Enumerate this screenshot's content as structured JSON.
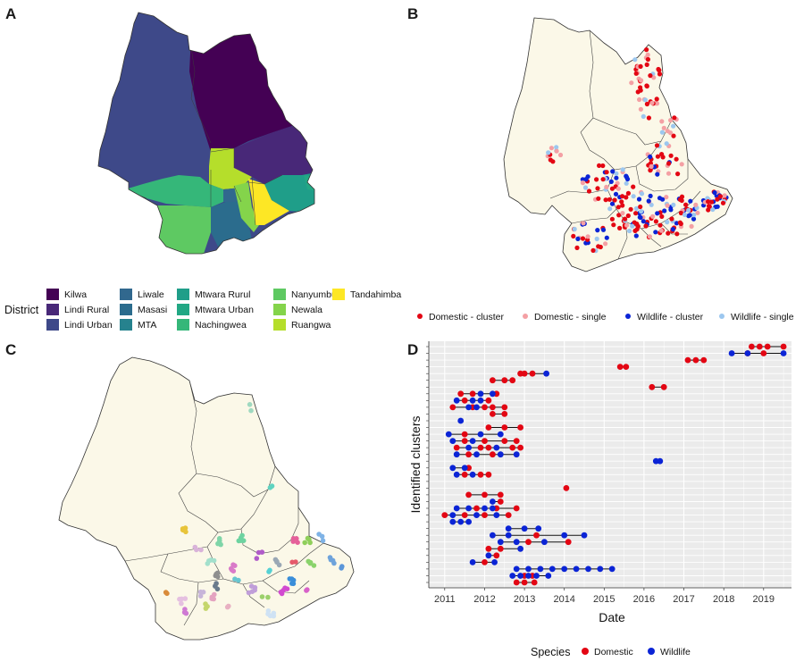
{
  "panels": {
    "a": "A",
    "b": "B",
    "c": "C",
    "d": "D"
  },
  "colors": {
    "land": "#fbf8e8",
    "domestic": "#e30613",
    "domestic_single": "#f4a0a4",
    "wildlife": "#0b24d6",
    "wildlife_single": "#9cc7ef",
    "panel_bg": "#ebebeb"
  },
  "legend_a": {
    "title": "District",
    "items": [
      {
        "label": "Kilwa",
        "color": "#440154"
      },
      {
        "label": "Lindi Rural",
        "color": "#482878"
      },
      {
        "label": "Lindi Urban",
        "color": "#3e4989"
      },
      {
        "label": "Liwale",
        "color": "#31688e"
      },
      {
        "label": "Masasi",
        "color": "#2b6c8d"
      },
      {
        "label": "MTA",
        "color": "#26828e"
      },
      {
        "label": "Mtwara Rurul",
        "color": "#1f9e89"
      },
      {
        "label": "Mtwara Urban",
        "color": "#22a884"
      },
      {
        "label": "Nachingwea",
        "color": "#35b779"
      },
      {
        "label": "Nanyumbu",
        "color": "#5ec962"
      },
      {
        "label": "Newala",
        "color": "#84d44b"
      },
      {
        "label": "Ruangwa",
        "color": "#b5de2b"
      },
      {
        "label": "Tandahimba",
        "color": "#fde725"
      }
    ]
  },
  "legend_b": {
    "items": [
      {
        "label": "Domestic - cluster",
        "color": "#e30613"
      },
      {
        "label": "Domestic - single",
        "color": "#f4a0a4"
      },
      {
        "label": "Wildlife - cluster",
        "color": "#0b24d6"
      },
      {
        "label": "Wildlife - single",
        "color": "#9cc7ef"
      }
    ]
  },
  "chart_data": {
    "type": "scatter",
    "xlabel": "Date",
    "ylabel": "Identified clusters",
    "xlim": [
      2010.6,
      2019.7
    ],
    "x_ticks": [
      "2011",
      "2012",
      "2013",
      "2014",
      "2015",
      "2016",
      "2017",
      "2018",
      "2019"
    ],
    "legend": {
      "title": "Species",
      "placement": "bottom",
      "items": [
        {
          "label": "Domestic",
          "color": "#e30613"
        },
        {
          "label": "Wildlife",
          "color": "#0b24d6"
        }
      ]
    },
    "clusters": [
      {
        "domestic": [
          2018.7,
          2018.9,
          2019.1,
          2019.5
        ],
        "wildlife": []
      },
      {
        "domestic": [
          2018.6,
          2019.0
        ],
        "wildlife": [
          2018.2,
          2018.6,
          2019.5
        ]
      },
      {
        "domestic": [
          2017.1,
          2017.3,
          2017.5
        ],
        "wildlife": []
      },
      {
        "domestic": [
          2015.4,
          2015.55
        ],
        "wildlife": []
      },
      {
        "domestic": [
          2012.9,
          2013.0,
          2013.2
        ],
        "wildlife": [
          2013.55
        ]
      },
      {
        "domestic": [
          2012.2,
          2012.5,
          2012.7
        ],
        "wildlife": []
      },
      {
        "domestic": [
          2016.2,
          2016.5
        ],
        "wildlife": []
      },
      {
        "domestic": [
          2011.4,
          2011.7,
          2012.3
        ],
        "wildlife": [
          2011.9,
          2012.2
        ]
      },
      {
        "domestic": [
          2011.5,
          2012.1
        ],
        "wildlife": [
          2011.3,
          2011.7,
          2011.9
        ]
      },
      {
        "domestic": [
          2011.2,
          2011.7,
          2012.0,
          2012.2,
          2012.5
        ],
        "wildlife": [
          2011.6,
          2011.8
        ]
      },
      {
        "domestic": [
          2012.2,
          2012.5
        ],
        "wildlife": []
      },
      {
        "domestic": [],
        "wildlife": [
          2011.4
        ]
      },
      {
        "domestic": [
          2012.1,
          2012.5,
          2012.9
        ],
        "wildlife": []
      },
      {
        "domestic": [
          2011.5
        ],
        "wildlife": [
          2011.1,
          2011.9,
          2012.4
        ]
      },
      {
        "domestic": [
          2011.5,
          2012.0,
          2012.5,
          2012.8
        ],
        "wildlife": [
          2011.2,
          2011.7
        ]
      },
      {
        "domestic": [
          2011.3,
          2011.9,
          2012.1,
          2012.7,
          2012.9
        ],
        "wildlife": [
          2011.6,
          2012.3
        ]
      },
      {
        "domestic": [
          2011.6,
          2012.2
        ],
        "wildlife": [
          2011.3,
          2011.8,
          2012.4,
          2012.8
        ]
      },
      {
        "domestic": [],
        "wildlife": [
          2016.3,
          2016.4
        ]
      },
      {
        "domestic": [
          2011.6
        ],
        "wildlife": [
          2011.2,
          2011.5
        ]
      },
      {
        "domestic": [
          2011.5,
          2011.9,
          2012.1
        ],
        "wildlife": [
          2011.3,
          2011.7
        ]
      },
      {
        "domestic": [],
        "wildlife": []
      },
      {
        "domestic": [
          2014.05
        ],
        "wildlife": []
      },
      {
        "domestic": [
          2011.6,
          2012.0,
          2012.4
        ],
        "wildlife": []
      },
      {
        "domestic": [
          2012.4
        ],
        "wildlife": [
          2012.2
        ]
      },
      {
        "domestic": [
          2011.8,
          2012.3,
          2012.8
        ],
        "wildlife": [
          2011.3,
          2011.6,
          2012.0,
          2012.2
        ]
      },
      {
        "domestic": [
          2011.0,
          2011.5,
          2012.0,
          2012.6
        ],
        "wildlife": [
          2011.2,
          2011.8,
          2012.3
        ]
      },
      {
        "domestic": [],
        "wildlife": [
          2011.2,
          2011.4,
          2011.6
        ]
      },
      {
        "domestic": [],
        "wildlife": [
          2012.6,
          2013.0,
          2013.35
        ]
      },
      {
        "domestic": [
          2013.3
        ],
        "wildlife": [
          2012.2,
          2012.6,
          2014.0,
          2014.5
        ]
      },
      {
        "domestic": [
          2013.1,
          2014.1
        ],
        "wildlife": [
          2012.4,
          2012.8,
          2013.5
        ]
      },
      {
        "domestic": [
          2012.1,
          2012.4
        ],
        "wildlife": [
          2012.9
        ]
      },
      {
        "domestic": [
          2012.3
        ],
        "wildlife": [
          2012.1
        ]
      },
      {
        "domestic": [
          2012.0
        ],
        "wildlife": [
          2011.7,
          2012.25
        ]
      },
      {
        "domestic": [],
        "wildlife": [
          2012.8,
          2013.1,
          2013.4,
          2013.7,
          2014.0,
          2014.3,
          2014.6,
          2014.9,
          2015.2
        ]
      },
      {
        "domestic": [
          2013.0,
          2013.2
        ],
        "wildlife": [
          2012.7,
          2012.9,
          2013.1,
          2013.3,
          2013.6
        ]
      },
      {
        "domestic": [
          2012.8,
          2013.0,
          2013.25
        ],
        "wildlife": []
      }
    ]
  }
}
